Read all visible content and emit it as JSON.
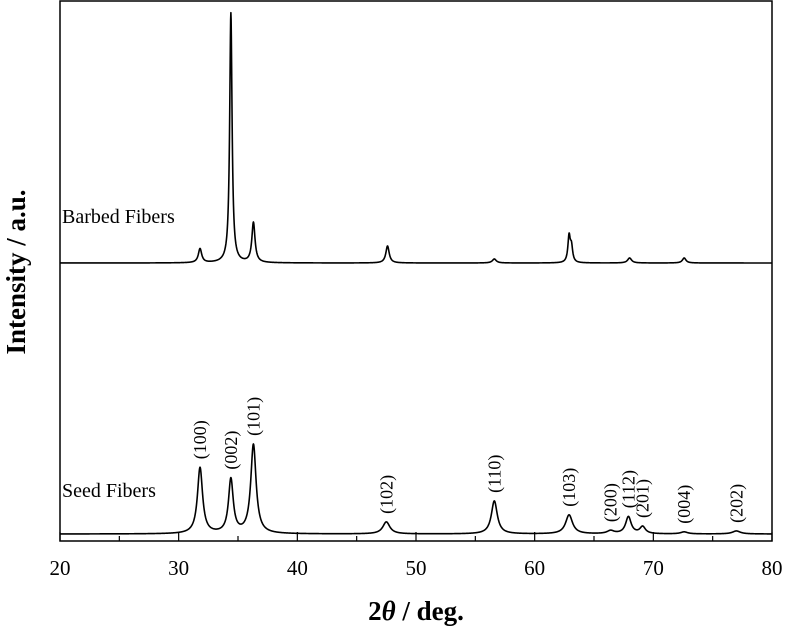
{
  "chart_data": {
    "type": "line",
    "xlabel_prefix": "2",
    "xlabel_symbol": "θ",
    "xlabel_suffix": " / deg.",
    "ylabel": "Intensity / a.u.",
    "xlim": [
      20,
      80
    ],
    "x_ticks": [
      20,
      30,
      40,
      50,
      60,
      70,
      80
    ],
    "y_ticks_shown": false,
    "grid": false,
    "legend": "none",
    "series": [
      {
        "name": "Barbed Fibers",
        "baseline": 0,
        "peaks": [
          {
            "x": 31.8,
            "height": 14,
            "width": 0.17
          },
          {
            "x": 34.4,
            "height": 250,
            "width": 0.12
          },
          {
            "x": 36.3,
            "height": 40,
            "width": 0.16
          },
          {
            "x": 47.6,
            "height": 17,
            "width": 0.17
          },
          {
            "x": 56.6,
            "height": 4,
            "width": 0.2
          },
          {
            "x": 62.9,
            "height": 26,
            "width": 0.12
          },
          {
            "x": 63.1,
            "height": 15,
            "width": 0.12
          },
          {
            "x": 68.0,
            "height": 5,
            "width": 0.2
          },
          {
            "x": 72.6,
            "height": 5,
            "width": 0.18
          }
        ]
      },
      {
        "name": "Seed Fibers",
        "baseline": 0,
        "peaks": [
          {
            "x": 31.8,
            "height": 66,
            "width": 0.26
          },
          {
            "x": 34.4,
            "height": 54,
            "width": 0.24
          },
          {
            "x": 36.3,
            "height": 89,
            "width": 0.27
          },
          {
            "x": 47.5,
            "height": 12,
            "width": 0.36
          },
          {
            "x": 56.6,
            "height": 33,
            "width": 0.3
          },
          {
            "x": 62.9,
            "height": 19,
            "width": 0.35
          },
          {
            "x": 66.4,
            "height": 3,
            "width": 0.35
          },
          {
            "x": 67.9,
            "height": 17,
            "width": 0.28
          },
          {
            "x": 69.1,
            "height": 7,
            "width": 0.28
          },
          {
            "x": 72.6,
            "height": 2,
            "width": 0.35
          },
          {
            "x": 77.0,
            "height": 3,
            "width": 0.4
          }
        ],
        "peak_labels": [
          {
            "x": 31.8,
            "text": "(100)"
          },
          {
            "x": 34.4,
            "text": "(002)"
          },
          {
            "x": 36.3,
            "text": "(101)"
          },
          {
            "x": 47.5,
            "text": "(102)"
          },
          {
            "x": 56.6,
            "text": "(110)"
          },
          {
            "x": 62.9,
            "text": "(103)"
          },
          {
            "x": 66.4,
            "text": "(200)"
          },
          {
            "x": 67.9,
            "text": "(112)"
          },
          {
            "x": 69.1,
            "text": "(201)"
          },
          {
            "x": 72.6,
            "text": "(004)"
          },
          {
            "x": 77.0,
            "text": "(202)"
          }
        ]
      }
    ]
  }
}
